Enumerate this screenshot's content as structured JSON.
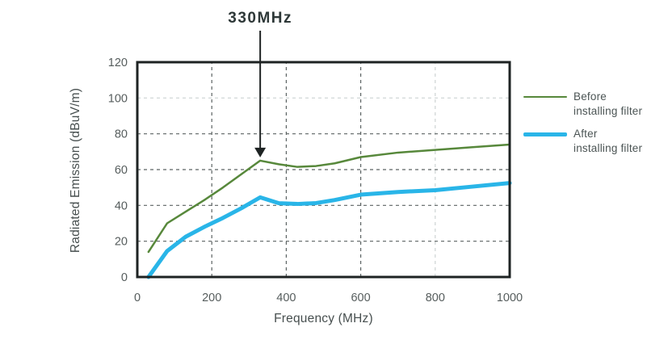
{
  "annotation": {
    "label": "330MHz",
    "x_value": 330
  },
  "legend": {
    "items": [
      {
        "line1": "Before",
        "line2": "installing filter",
        "color": "#57883B"
      },
      {
        "line1": "After",
        "line2": "installing filter",
        "color": "#29B5E8"
      }
    ]
  },
  "colors": {
    "border": "#1E2323",
    "grid_dark": "#5C6363",
    "grid_light": "#CDD3D3",
    "tick_label": "#565D5D",
    "axis_title": "#474F4F",
    "annotation_text": "#2E3838",
    "arrow": "#1E2323",
    "series_before": "#57883B",
    "series_after": "#29B5E8"
  },
  "chart_data": {
    "type": "line",
    "title": "",
    "xlabel": "Frequency (MHz)",
    "ylabel": "Radiated Emission (dBuV/m)",
    "xlim": [
      0,
      1000
    ],
    "ylim": [
      0,
      120
    ],
    "x_ticks": [
      0,
      200,
      400,
      600,
      800,
      1000
    ],
    "y_ticks": [
      0,
      20,
      40,
      60,
      80,
      100,
      120
    ],
    "grid": "dashed",
    "light_gridlines": {
      "x": [
        800
      ],
      "y": [
        100
      ]
    },
    "legend_position": "right",
    "annotations": [
      {
        "text": "330MHz",
        "x": 330,
        "y": 65,
        "arrow": true,
        "points_to_series": "Before installing filter"
      }
    ],
    "series": [
      {
        "name": "Before installing filter",
        "color": "#57883B",
        "stroke_width": 2.5,
        "x": [
          30,
          80,
          130,
          180,
          230,
          280,
          330,
          380,
          430,
          480,
          530,
          600,
          700,
          800,
          900,
          1000
        ],
        "y": [
          14,
          30,
          36.5,
          43,
          50,
          57.5,
          65,
          63,
          61.5,
          62,
          63.5,
          67,
          69.5,
          71,
          72.5,
          74
        ]
      },
      {
        "name": "After installing filter",
        "color": "#29B5E8",
        "stroke_width": 5,
        "x": [
          30,
          80,
          130,
          180,
          230,
          280,
          330,
          380,
          430,
          480,
          530,
          600,
          700,
          800,
          900,
          1000
        ],
        "y": [
          0,
          14.5,
          22.5,
          28,
          33,
          38.5,
          44.5,
          41.2,
          40.8,
          41.3,
          43,
          46,
          47.5,
          48.5,
          50.5,
          52.5
        ]
      }
    ]
  }
}
